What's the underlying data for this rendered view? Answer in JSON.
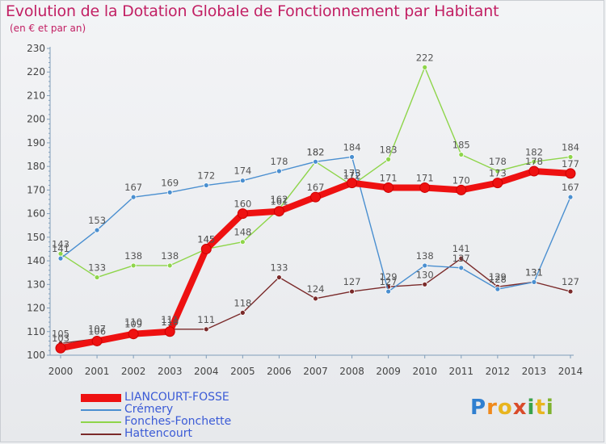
{
  "header": {
    "title": "Evolution de la Dotation Globale de Fonctionnement par Habitant",
    "subtitle": "(en € et par an)"
  },
  "logo": {
    "text": "Proxiti",
    "letters": [
      "P",
      "r",
      "o",
      "x",
      "i",
      "t",
      "i"
    ],
    "colors": [
      "#2f7fd0",
      "#f08a1c",
      "#e8b51f",
      "#d94b2a",
      "#3aa24b",
      "#e8b51f",
      "#7fb32e"
    ]
  },
  "colors": {
    "title": "#c22064",
    "axis": "#7f9db9",
    "label_text": "#555555"
  },
  "chart_data": {
    "type": "line",
    "title": "Evolution de la Dotation Globale de Fonctionnement par Habitant",
    "subtitle": "(en € et par an)",
    "xlabel": "",
    "ylabel": "",
    "x": [
      2000,
      2001,
      2002,
      2003,
      2004,
      2005,
      2006,
      2007,
      2008,
      2009,
      2010,
      2011,
      2012,
      2013,
      2014
    ],
    "ylim": [
      100,
      230
    ],
    "yticks": [
      100,
      110,
      120,
      130,
      140,
      150,
      160,
      170,
      180,
      190,
      200,
      210,
      220,
      230
    ],
    "grid": false,
    "legend_position": "bottom-left",
    "series": [
      {
        "name": "LIANCOURT-FOSSE",
        "color": "#ee1111",
        "values": [
          103,
          106,
          109,
          110,
          145,
          160,
          161,
          167,
          173,
          171,
          171,
          170,
          173,
          178,
          177
        ],
        "labels": [
          "103",
          "106",
          "109",
          "110",
          "145",
          "160",
          "161",
          "167",
          "173",
          "171",
          "171",
          "170",
          "173",
          "178",
          "177"
        ]
      },
      {
        "name": "Crémery",
        "color": "#4a8fd0",
        "values": [
          141,
          153,
          167,
          169,
          172,
          174,
          178,
          182,
          184,
          127,
          138,
          137,
          128,
          131,
          167
        ],
        "labels": [
          "141",
          "153",
          "167",
          "169",
          "172",
          "174",
          "178",
          "182",
          "184",
          "127",
          "138",
          "137",
          "128",
          "131",
          "167"
        ]
      },
      {
        "name": "Fonches-Fonchette",
        "color": "#8ed54a",
        "values": [
          143,
          133,
          138,
          138,
          145,
          148,
          162,
          182,
          172,
          183,
          222,
          185,
          178,
          182,
          184
        ],
        "labels": [
          "143",
          "133",
          "138",
          "138",
          "145",
          "148",
          "162",
          "182",
          "172",
          "183",
          "222",
          "185",
          "178",
          "182",
          "184"
        ]
      },
      {
        "name": "Hattencourt",
        "color": "#7a2a2a",
        "values": [
          105,
          107,
          110,
          111,
          111,
          118,
          133,
          124,
          127,
          129,
          130,
          141,
          129,
          131,
          127
        ],
        "labels": [
          "105",
          "107",
          "110",
          "111",
          "111",
          "118",
          "133",
          "124",
          "127",
          "129",
          "130",
          "141",
          "129",
          "131",
          "127"
        ]
      }
    ]
  }
}
